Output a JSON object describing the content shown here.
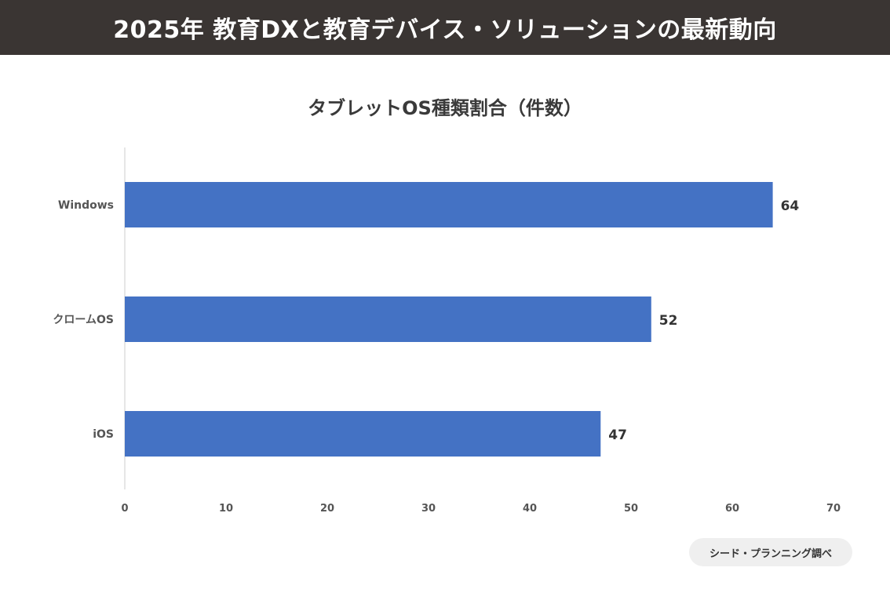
{
  "header": {
    "title": "2025年 教育DXと教育デバイス・ソリューションの最新動向"
  },
  "chart_data": {
    "type": "bar",
    "orientation": "horizontal",
    "title": "タブレットOS種類割合（件数）",
    "xlabel": "",
    "ylabel": "",
    "categories": [
      "Windows",
      "クロームOS",
      "iOS"
    ],
    "values": [
      64,
      52,
      47
    ],
    "xlim": [
      0,
      70
    ],
    "xticks": [
      0,
      10,
      20,
      30,
      40,
      50,
      60,
      70
    ],
    "grid": false,
    "legend": "none",
    "bar_color": "#4472c4"
  },
  "source": {
    "label": "シード・プランニング調べ"
  }
}
